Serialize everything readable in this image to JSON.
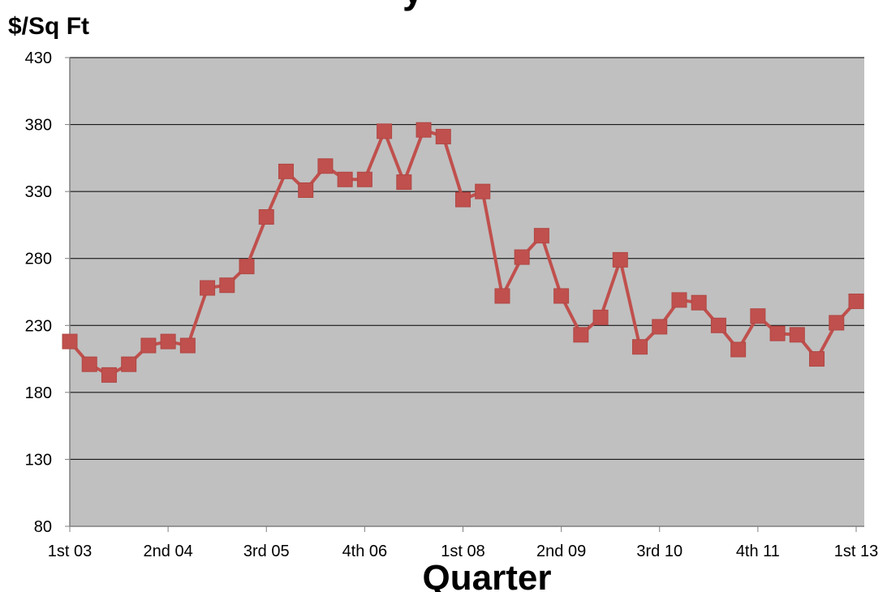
{
  "chart_data": {
    "type": "line",
    "title": "",
    "title_visible_fragment": "y",
    "ylabel": "$/Sq Ft",
    "xlabel": "Quarter",
    "ylim": [
      80,
      430
    ],
    "yticks": [
      80,
      130,
      180,
      230,
      280,
      330,
      380,
      430
    ],
    "x_tick_labels": [
      "1st 03",
      "2nd 04",
      "3rd 05",
      "4th 06",
      "1st 08",
      "2nd 09",
      "3rd 10",
      "4th 11",
      "1st 13"
    ],
    "x_tick_every": 5,
    "grid": true,
    "plot_background": "#c0c0c0",
    "series": [
      {
        "color": "#c0504d",
        "marker": "square",
        "values": [
          218,
          201,
          193,
          201,
          215,
          218,
          215,
          258,
          260,
          274,
          311,
          345,
          331,
          349,
          339,
          339,
          375,
          337,
          376,
          371,
          324,
          330,
          252,
          281,
          297,
          252,
          223,
          236,
          279,
          214,
          229,
          249,
          247,
          230,
          212,
          237,
          224,
          223,
          205,
          232,
          248
        ]
      }
    ]
  }
}
